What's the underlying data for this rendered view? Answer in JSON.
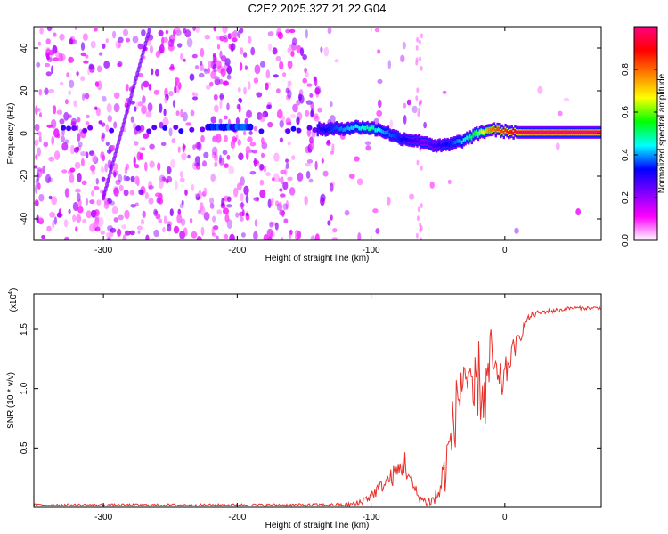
{
  "title": "C2E2.2025.327.21.22.G04",
  "chart_data": [
    {
      "type": "heatmap",
      "title": "C2E2.2025.327.21.22.G04",
      "xlabel": "Height of straight line (km)",
      "ylabel": "Frequency (Hz)",
      "xlim": [
        -352,
        72
      ],
      "ylim": [
        -50,
        50
      ],
      "x_ticks": [
        -300,
        -200,
        -100,
        0
      ],
      "y_ticks": [
        -40,
        -20,
        0,
        20,
        40
      ],
      "x_tick_labels": [
        "-300",
        "-200",
        "-100",
        "0"
      ],
      "y_tick_labels": [
        "-40",
        "-20",
        "0",
        "20",
        "40"
      ],
      "signal_trace": {
        "x": [
          -140,
          -130,
          -120,
          -110,
          -100,
          -90,
          -80,
          -70,
          -60,
          -50,
          -40,
          -30,
          -20,
          -10,
          0,
          10,
          20,
          40,
          60,
          72
        ],
        "frequency": [
          2,
          2,
          2.5,
          3,
          2.5,
          1,
          -2,
          -3,
          -4,
          -6,
          -5,
          -3,
          0,
          2,
          1,
          0.5,
          0.5,
          0.5,
          0.5,
          0.5
        ],
        "amplitude": [
          0.3,
          0.35,
          0.4,
          0.45,
          0.5,
          0.4,
          0.35,
          0.3,
          0.25,
          0.3,
          0.35,
          0.45,
          0.6,
          0.8,
          0.85,
          0.95,
          1.0,
          1.0,
          1.0,
          1.0
        ]
      },
      "colorbar": {
        "label": "Normalized spectral amplitude",
        "range": [
          0,
          1
        ],
        "ticks": [
          0.0,
          0.2,
          0.4,
          0.6,
          0.8
        ],
        "tick_labels": [
          "0.0",
          "0.2",
          "0.4",
          "0.6",
          "0.8"
        ],
        "colors": [
          "#ffffff",
          "#ff00ff",
          "#8000ff",
          "#0000ff",
          "#00ffff",
          "#00ff00",
          "#ffff00",
          "#ff8000",
          "#ff0000",
          "#ff0080"
        ]
      }
    },
    {
      "type": "line",
      "xlabel": "Height of straight line (km)",
      "ylabel": "SNR (10 * v/v)",
      "exponent_label": "(x10",
      "exponent": "4",
      "exponent_close": ")",
      "xlim": [
        -352,
        72
      ],
      "ylim": [
        0,
        1.8
      ],
      "x_ticks": [
        -300,
        -200,
        -100,
        0
      ],
      "y_ticks": [
        0.5,
        1.0,
        1.5
      ],
      "x_tick_labels": [
        "-300",
        "-200",
        "-100",
        "0"
      ],
      "y_tick_labels": [
        "0.5",
        "1.0",
        "1.5"
      ],
      "series": [
        {
          "name": "SNR",
          "color": "#e8302a",
          "x": [
            -352,
            -300,
            -250,
            -200,
            -150,
            -120,
            -110,
            -100,
            -90,
            -80,
            -75,
            -70,
            -65,
            -60,
            -55,
            -50,
            -45,
            -40,
            -35,
            -30,
            -25,
            -20,
            -15,
            -10,
            -5,
            0,
            5,
            10,
            15,
            20,
            30,
            40,
            50,
            60,
            72
          ],
          "values": [
            0.02,
            0.02,
            0.02,
            0.02,
            0.02,
            0.02,
            0.03,
            0.1,
            0.2,
            0.3,
            0.38,
            0.2,
            0.1,
            0.05,
            0.05,
            0.1,
            0.3,
            0.6,
            0.9,
            1.2,
            0.8,
            1.1,
            0.9,
            1.3,
            1.0,
            1.1,
            1.3,
            1.4,
            1.55,
            1.62,
            1.65,
            1.66,
            1.68,
            1.68,
            1.68
          ],
          "noise": [
            0.01,
            0.01,
            0.01,
            0.01,
            0.012,
            0.015,
            0.03,
            0.05,
            0.06,
            0.1,
            0.12,
            0.08,
            0.05,
            0.04,
            0.05,
            0.12,
            0.2,
            0.25,
            0.3,
            0.35,
            0.3,
            0.35,
            0.3,
            0.25,
            0.2,
            0.15,
            0.1,
            0.07,
            0.04,
            0.03,
            0.02,
            0.02,
            0.015,
            0.015,
            0.015
          ]
        }
      ]
    }
  ]
}
